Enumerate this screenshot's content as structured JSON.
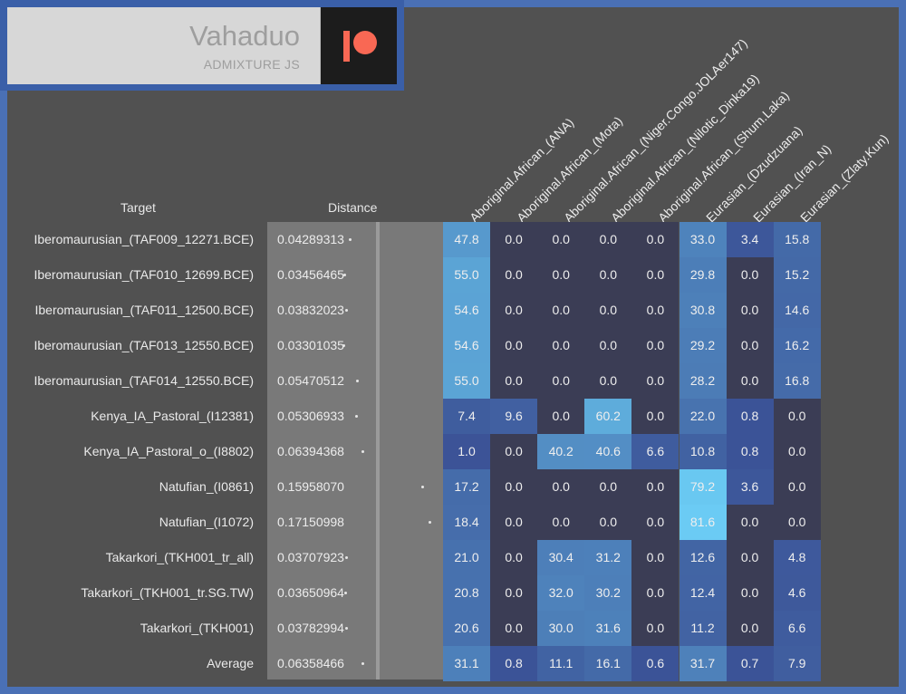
{
  "brand": {
    "title": "Vahaduo",
    "subtitle": "ADMIXTURE JS",
    "icon": "patreon-icon"
  },
  "headers": {
    "target": "Target",
    "distance": "Distance"
  },
  "columns": [
    "Aboriginal.African_(ANA)",
    "Aboriginal.African_(Mota)",
    "Aboriginal.African_(Niger.Congo.JOLAer147)",
    "Aboriginal.African_(Nilotic_Dinka19)",
    "Aboriginal.African_(Shum.Laka)",
    "Eurasian_(Dzudzuana)",
    "Eurasian_(Iran_N)",
    "Eurasian_(Zlaty.Kun)"
  ],
  "rows": [
    {
      "target": "Iberomaurusian_(TAF009_12271.BCE)",
      "distance": "0.04289313",
      "values": [
        "47.8",
        "0.0",
        "0.0",
        "0.0",
        "0.0",
        "33.0",
        "3.4",
        "15.8"
      ]
    },
    {
      "target": "Iberomaurusian_(TAF010_12699.BCE)",
      "distance": "0.03456465",
      "values": [
        "55.0",
        "0.0",
        "0.0",
        "0.0",
        "0.0",
        "29.8",
        "0.0",
        "15.2"
      ]
    },
    {
      "target": "Iberomaurusian_(TAF011_12500.BCE)",
      "distance": "0.03832023",
      "values": [
        "54.6",
        "0.0",
        "0.0",
        "0.0",
        "0.0",
        "30.8",
        "0.0",
        "14.6"
      ]
    },
    {
      "target": "Iberomaurusian_(TAF013_12550.BCE)",
      "distance": "0.03301035",
      "values": [
        "54.6",
        "0.0",
        "0.0",
        "0.0",
        "0.0",
        "29.2",
        "0.0",
        "16.2"
      ]
    },
    {
      "target": "Iberomaurusian_(TAF014_12550.BCE)",
      "distance": "0.05470512",
      "values": [
        "55.0",
        "0.0",
        "0.0",
        "0.0",
        "0.0",
        "28.2",
        "0.0",
        "16.8"
      ]
    },
    {
      "target": "Kenya_IA_Pastoral_(I12381)",
      "distance": "0.05306933",
      "values": [
        "7.4",
        "9.6",
        "0.0",
        "60.2",
        "0.0",
        "22.0",
        "0.8",
        "0.0"
      ]
    },
    {
      "target": "Kenya_IA_Pastoral_o_(I8802)",
      "distance": "0.06394368",
      "values": [
        "1.0",
        "0.0",
        "40.2",
        "40.6",
        "6.6",
        "10.8",
        "0.8",
        "0.0"
      ]
    },
    {
      "target": "Natufian_(I0861)",
      "distance": "0.15958070",
      "values": [
        "17.2",
        "0.0",
        "0.0",
        "0.0",
        "0.0",
        "79.2",
        "3.6",
        "0.0"
      ]
    },
    {
      "target": "Natufian_(I1072)",
      "distance": "0.17150998",
      "values": [
        "18.4",
        "0.0",
        "0.0",
        "0.0",
        "0.0",
        "81.6",
        "0.0",
        "0.0"
      ]
    },
    {
      "target": "Takarkori_(TKH001_tr_all)",
      "distance": "0.03707923",
      "values": [
        "21.0",
        "0.0",
        "30.4",
        "31.2",
        "0.0",
        "12.6",
        "0.0",
        "4.8"
      ]
    },
    {
      "target": "Takarkori_(TKH001_tr.SG.TW)",
      "distance": "0.03650964",
      "values": [
        "20.8",
        "0.0",
        "32.0",
        "30.2",
        "0.0",
        "12.4",
        "0.0",
        "4.6"
      ]
    },
    {
      "target": "Takarkori_(TKH001)",
      "distance": "0.03782994",
      "values": [
        "20.6",
        "0.0",
        "30.0",
        "31.6",
        "0.0",
        "11.2",
        "0.0",
        "6.6"
      ]
    },
    {
      "target": "Average",
      "distance": "0.06358466",
      "values": [
        "31.1",
        "0.8",
        "11.1",
        "16.1",
        "0.6",
        "31.7",
        "0.7",
        "7.9"
      ]
    }
  ],
  "colors": {
    "background": "#515151",
    "frame": "#4a70b5",
    "patreon": "#f96854"
  }
}
